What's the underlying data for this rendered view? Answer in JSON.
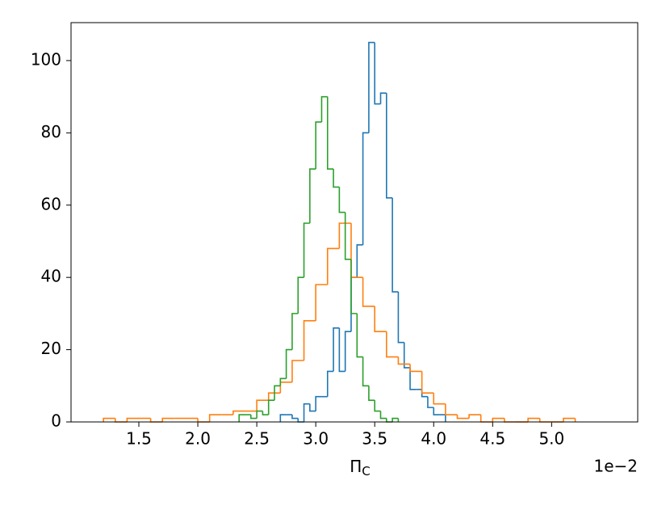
{
  "chart_data": {
    "type": "histogram",
    "x_label": {
      "symbol": "Π",
      "subscript": "C"
    },
    "x_offset_label": "1e−2",
    "xlim": [
      0.925,
      5.73
    ],
    "xticks": [
      1.5,
      {
        "value": 2,
        "label": "2.0"
      },
      2.5,
      {
        "value": 3,
        "label": "3.0"
      },
      3.5,
      {
        "value": 4,
        "label": "4.0"
      },
      4.5,
      {
        "value": 5,
        "label": "5.0"
      }
    ],
    "ylim": [
      0,
      110.5
    ],
    "yticks": [
      0,
      20,
      40,
      60,
      80,
      100
    ],
    "series": [
      {
        "color": "#1f77b4",
        "bins": [
          2.7,
          2.75,
          2.8,
          2.85,
          2.9,
          2.95,
          3.0,
          3.05,
          3.1,
          3.15,
          3.2,
          3.25,
          3.3,
          3.35,
          3.4,
          3.45,
          3.5,
          3.55,
          3.6,
          3.65,
          3.7,
          3.75,
          3.8,
          3.85,
          3.9,
          3.95,
          4.0,
          4.05,
          4.1
        ],
        "values": [
          2,
          2,
          1,
          0,
          5,
          3,
          7,
          7,
          14,
          26,
          14,
          25,
          40,
          49,
          80,
          105,
          88,
          91,
          62,
          36,
          22,
          15,
          9,
          9,
          7,
          4,
          2,
          2
        ]
      },
      {
        "color": "#ff7f0e",
        "bins": [
          1.2,
          1.3,
          1.4,
          1.5,
          1.6,
          1.7,
          1.8,
          1.9,
          2.0,
          2.1,
          2.2,
          2.3,
          2.4,
          2.5,
          2.6,
          2.7,
          2.8,
          2.9,
          3.0,
          3.1,
          3.2,
          3.3,
          3.4,
          3.5,
          3.6,
          3.7,
          3.8,
          3.9,
          4.0,
          4.1,
          4.2,
          4.3,
          4.4,
          4.5,
          4.6,
          4.7,
          4.8,
          4.9,
          5.0,
          5.1,
          5.2
        ],
        "values": [
          1,
          0,
          1,
          1,
          0,
          1,
          1,
          1,
          0,
          2,
          2,
          3,
          3,
          6,
          8,
          11,
          17,
          28,
          38,
          48,
          55,
          40,
          32,
          25,
          18,
          16,
          14,
          8,
          5,
          2,
          1,
          2,
          0,
          1,
          0,
          0,
          1,
          0,
          0,
          1
        ]
      },
      {
        "color": "#2ca02c",
        "bins": [
          2.35,
          2.4,
          2.45,
          2.5,
          2.55,
          2.6,
          2.65,
          2.7,
          2.75,
          2.8,
          2.85,
          2.9,
          2.95,
          3.0,
          3.05,
          3.1,
          3.15,
          3.2,
          3.25,
          3.3,
          3.35,
          3.4,
          3.45,
          3.5,
          3.55,
          3.6,
          3.65,
          3.7
        ],
        "values": [
          2,
          2,
          1,
          3,
          2,
          6,
          10,
          12,
          20,
          30,
          40,
          55,
          70,
          83,
          90,
          70,
          65,
          58,
          45,
          30,
          18,
          10,
          6,
          3,
          1,
          0,
          1
        ]
      }
    ]
  }
}
